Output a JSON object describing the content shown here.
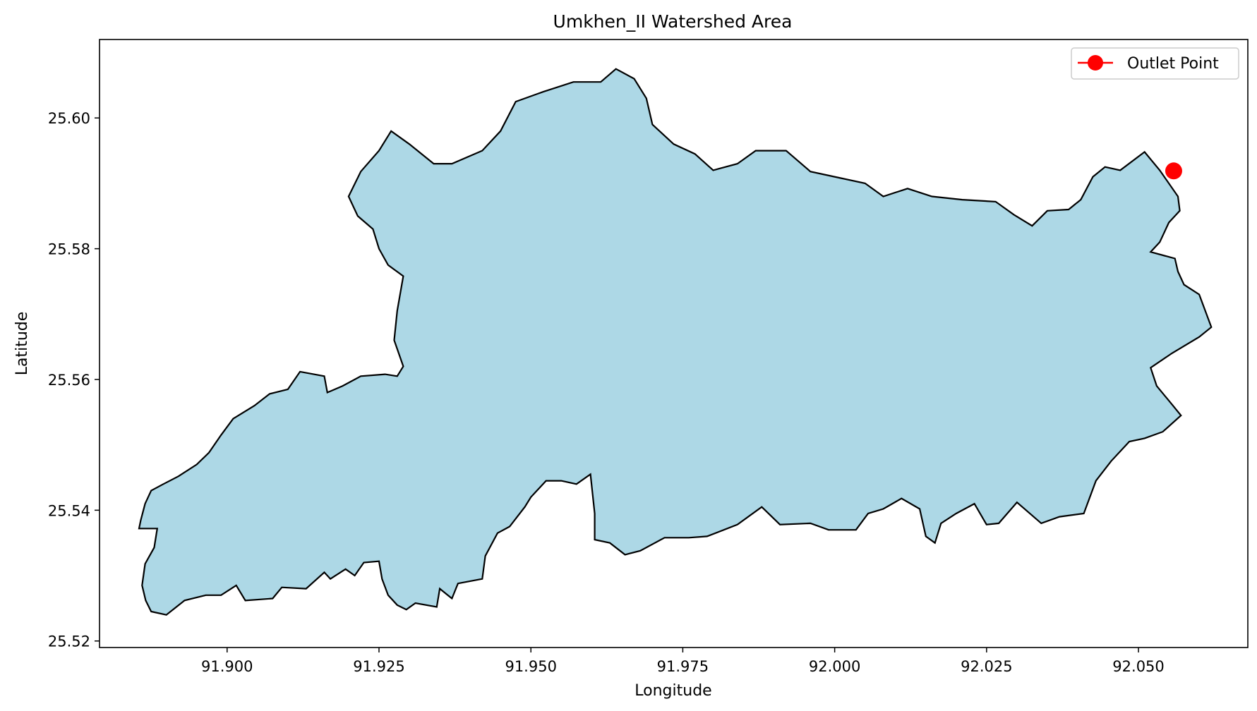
{
  "chart_data": {
    "type": "map",
    "title": "Umkhen_II Watershed Area",
    "xlabel": "Longitude",
    "ylabel": "Latitude",
    "xlim": [
      91.879,
      92.068
    ],
    "ylim": [
      25.519,
      25.612
    ],
    "xticks": [
      91.9,
      91.925,
      91.95,
      91.975,
      92.0,
      92.025,
      92.05
    ],
    "xtick_labels": [
      "91.900",
      "91.925",
      "91.950",
      "91.975",
      "92.000",
      "92.025",
      "92.050"
    ],
    "yticks": [
      25.52,
      25.54,
      25.56,
      25.58,
      25.6
    ],
    "ytick_labels": [
      "25.52",
      "25.54",
      "25.56",
      "25.58",
      "25.60"
    ],
    "grid": false,
    "legend": {
      "position": "top-right",
      "entries": [
        {
          "label": "Outlet Point",
          "marker": "circle",
          "color": "#ff0000"
        }
      ]
    },
    "watershed": {
      "fill": "#add8e6",
      "edge": "#000000",
      "boundary": [
        [
          91.8855,
          25.5372
        ],
        [
          91.8885,
          25.5372
        ],
        [
          91.888,
          25.5343
        ],
        [
          91.8865,
          25.5318
        ],
        [
          91.886,
          25.5285
        ],
        [
          91.8866,
          25.5262
        ],
        [
          91.8875,
          25.5245
        ],
        [
          91.89,
          25.524
        ],
        [
          91.893,
          25.5262
        ],
        [
          91.8965,
          25.527
        ],
        [
          91.899,
          25.527
        ],
        [
          91.9015,
          25.5285
        ],
        [
          91.903,
          25.5262
        ],
        [
          91.9075,
          25.5265
        ],
        [
          91.909,
          25.5282
        ],
        [
          91.913,
          25.528
        ],
        [
          91.916,
          25.5305
        ],
        [
          91.917,
          25.5295
        ],
        [
          91.9195,
          25.531
        ],
        [
          91.921,
          25.53
        ],
        [
          91.9225,
          25.532
        ],
        [
          91.925,
          25.5322
        ],
        [
          91.9255,
          25.5295
        ],
        [
          91.9265,
          25.527
        ],
        [
          91.928,
          25.5255
        ],
        [
          91.9295,
          25.5248
        ],
        [
          91.931,
          25.5258
        ],
        [
          91.9345,
          25.5252
        ],
        [
          91.935,
          25.528
        ],
        [
          91.937,
          25.5265
        ],
        [
          91.938,
          25.5288
        ],
        [
          91.942,
          25.5295
        ],
        [
          91.9425,
          25.533
        ],
        [
          91.9445,
          25.5365
        ],
        [
          91.9465,
          25.5375
        ],
        [
          91.949,
          25.5405
        ],
        [
          91.95,
          25.542
        ],
        [
          91.9525,
          25.5445
        ],
        [
          91.955,
          25.5445
        ],
        [
          91.9575,
          25.544
        ],
        [
          91.9598,
          25.5455
        ],
        [
          91.9605,
          25.5395
        ],
        [
          91.9605,
          25.5355
        ],
        [
          91.963,
          25.535
        ],
        [
          91.9655,
          25.5332
        ],
        [
          91.968,
          25.5338
        ],
        [
          91.972,
          25.5358
        ],
        [
          91.976,
          25.5358
        ],
        [
          91.979,
          25.536
        ],
        [
          91.984,
          25.5378
        ],
        [
          91.988,
          25.5405
        ],
        [
          91.991,
          25.5378
        ],
        [
          91.996,
          25.538
        ],
        [
          91.999,
          25.537
        ],
        [
          92.0035,
          25.537
        ],
        [
          92.0055,
          25.5395
        ],
        [
          92.008,
          25.5402
        ],
        [
          92.011,
          25.5418
        ],
        [
          92.014,
          25.5402
        ],
        [
          92.015,
          25.536
        ],
        [
          92.0165,
          25.535
        ],
        [
          92.0175,
          25.538
        ],
        [
          92.02,
          25.5395
        ],
        [
          92.023,
          25.541
        ],
        [
          92.025,
          25.5378
        ],
        [
          92.027,
          25.538
        ],
        [
          92.03,
          25.5412
        ],
        [
          92.034,
          25.538
        ],
        [
          92.037,
          25.539
        ],
        [
          92.041,
          25.5395
        ],
        [
          92.043,
          25.5445
        ],
        [
          92.0455,
          25.5475
        ],
        [
          92.0485,
          25.5505
        ],
        [
          92.051,
          25.551
        ],
        [
          92.054,
          25.552
        ],
        [
          92.057,
          25.5545
        ],
        [
          92.0555,
          25.5562
        ],
        [
          92.053,
          25.559
        ],
        [
          92.052,
          25.5618
        ],
        [
          92.0555,
          25.564
        ],
        [
          92.06,
          25.5665
        ],
        [
          92.062,
          25.568
        ],
        [
          92.06,
          25.573
        ],
        [
          92.0575,
          25.5745
        ],
        [
          92.0565,
          25.5765
        ],
        [
          92.056,
          25.5785
        ],
        [
          92.052,
          25.5795
        ],
        [
          92.0535,
          25.581
        ],
        [
          92.055,
          25.584
        ],
        [
          92.0568,
          25.5858
        ],
        [
          92.0565,
          25.588
        ],
        [
          92.0535,
          25.592
        ],
        [
          92.051,
          25.5948
        ],
        [
          92.047,
          25.592
        ],
        [
          92.0445,
          25.5925
        ],
        [
          92.0425,
          25.591
        ],
        [
          92.0405,
          25.5875
        ],
        [
          92.0385,
          25.586
        ],
        [
          92.035,
          25.5858
        ],
        [
          92.0325,
          25.5835
        ],
        [
          92.0295,
          25.5852
        ],
        [
          92.0265,
          25.5872
        ],
        [
          92.021,
          25.5875
        ],
        [
          92.016,
          25.588
        ],
        [
          92.012,
          25.5892
        ],
        [
          92.008,
          25.588
        ],
        [
          92.005,
          25.59
        ],
        [
          92.001,
          25.5908
        ],
        [
          91.996,
          25.5918
        ],
        [
          91.992,
          25.595
        ],
        [
          91.987,
          25.595
        ],
        [
          91.984,
          25.593
        ],
        [
          91.98,
          25.592
        ],
        [
          91.977,
          25.5945
        ],
        [
          91.9735,
          25.596
        ],
        [
          91.97,
          25.599
        ],
        [
          91.969,
          25.603
        ],
        [
          91.967,
          25.606
        ],
        [
          91.964,
          25.6075
        ],
        [
          91.9615,
          25.6055
        ],
        [
          91.957,
          25.6055
        ],
        [
          91.952,
          25.604
        ],
        [
          91.9475,
          25.6025
        ],
        [
          91.945,
          25.598
        ],
        [
          91.942,
          25.595
        ],
        [
          91.937,
          25.593
        ],
        [
          91.934,
          25.593
        ],
        [
          91.93,
          25.596
        ],
        [
          91.927,
          25.598
        ],
        [
          91.925,
          25.595
        ],
        [
          91.922,
          25.5918
        ],
        [
          91.92,
          25.588
        ],
        [
          91.9215,
          25.585
        ],
        [
          91.924,
          25.583
        ],
        [
          91.925,
          25.58
        ],
        [
          91.9265,
          25.5775
        ],
        [
          91.929,
          25.5758
        ],
        [
          91.928,
          25.5705
        ],
        [
          91.9275,
          25.566
        ],
        [
          91.929,
          25.562
        ],
        [
          91.928,
          25.5605
        ],
        [
          91.926,
          25.5608
        ],
        [
          91.922,
          25.5605
        ],
        [
          91.919,
          25.559
        ],
        [
          91.9165,
          25.558
        ],
        [
          91.916,
          25.5605
        ],
        [
          91.912,
          25.5612
        ],
        [
          91.91,
          25.5585
        ],
        [
          91.907,
          25.5578
        ],
        [
          91.9045,
          25.556
        ],
        [
          91.901,
          25.554
        ],
        [
          91.899,
          25.5515
        ],
        [
          91.897,
          25.5488
        ],
        [
          91.895,
          25.547
        ],
        [
          91.892,
          25.5452
        ],
        [
          91.8895,
          25.544
        ],
        [
          91.8875,
          25.543
        ],
        [
          91.8865,
          25.541
        ],
        [
          91.8858,
          25.5385
        ]
      ]
    },
    "outlet": {
      "lon": 92.0558,
      "lat": 25.5919,
      "color": "#ff0000"
    }
  }
}
